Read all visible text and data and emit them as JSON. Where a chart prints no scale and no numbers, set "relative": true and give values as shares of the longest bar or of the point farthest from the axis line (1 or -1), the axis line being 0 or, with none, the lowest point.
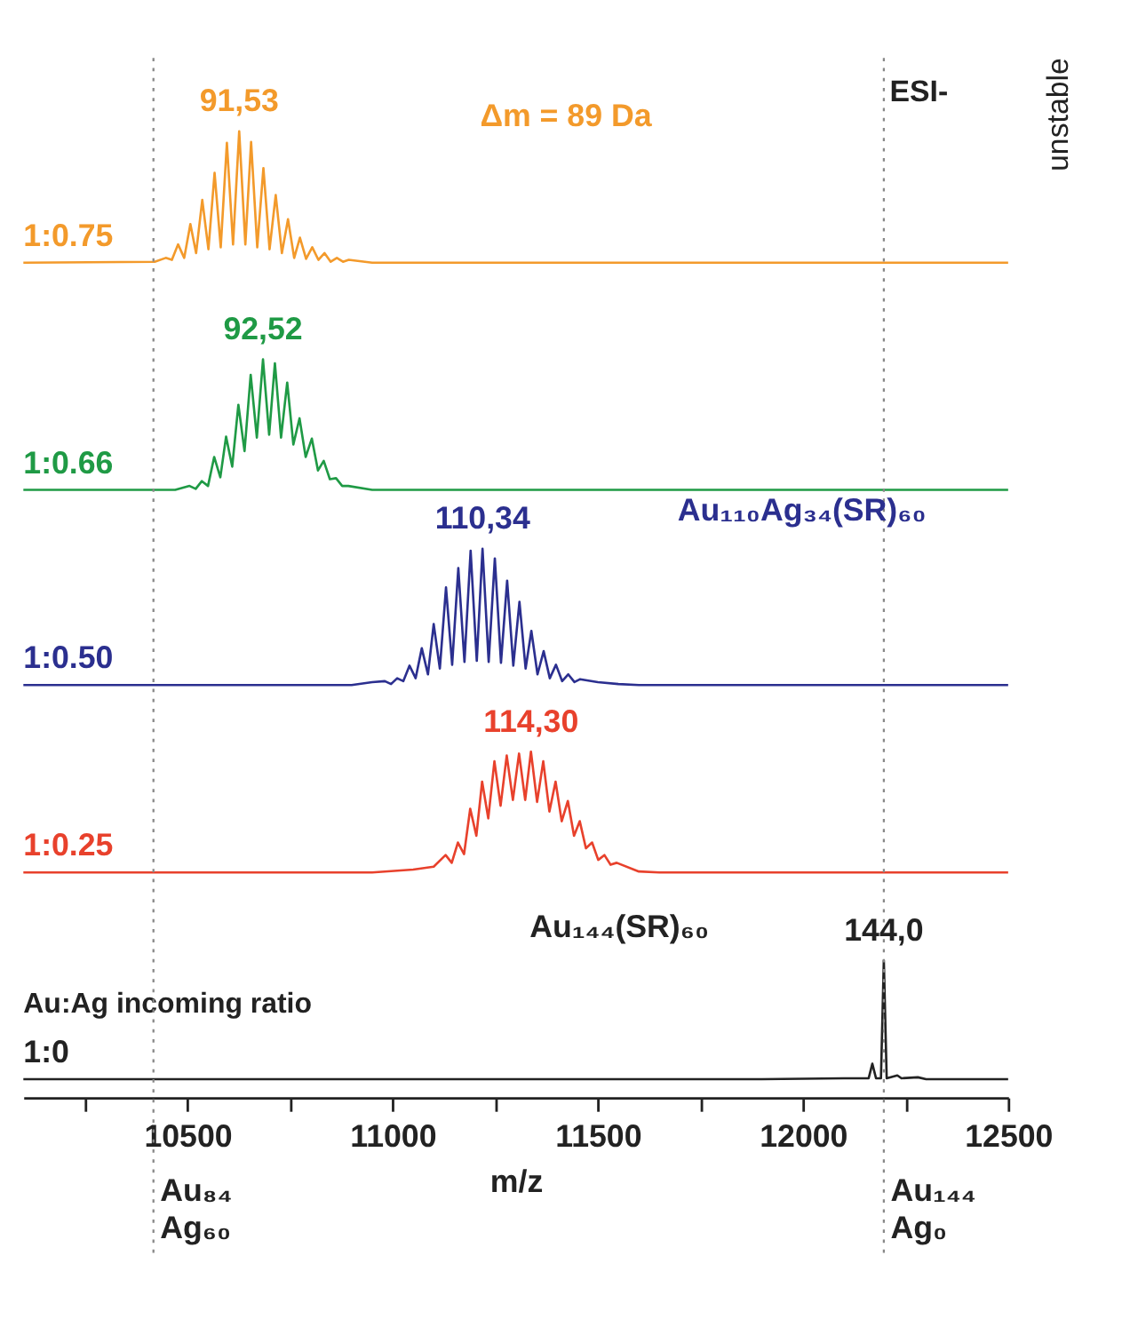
{
  "chart_data": {
    "type": "line",
    "relative": true,
    "xlim": [
      10100,
      12500
    ],
    "tick_labels": "x",
    "xlabel": "m/z",
    "legend_title": "Au:Ag incoming ratio",
    "xticks": [
      {
        "value": 10250,
        "label": null
      },
      10500,
      {
        "value": 10750,
        "label": null
      },
      11000,
      {
        "value": 11250,
        "label": null
      },
      11500,
      {
        "value": 11750,
        "label": null
      },
      12000,
      {
        "value": 12250,
        "label": null
      },
      12500
    ],
    "series": [
      {
        "name": "1:0.75",
        "color": "#f39a2b",
        "x": [
          10100,
          10420,
          10447,
          10462,
          10477,
          10492,
          10507,
          10521,
          10536,
          10551,
          10566,
          10581,
          10596,
          10611,
          10626,
          10641,
          10655,
          10670,
          10685,
          10700,
          10715,
          10730,
          10745,
          10760,
          10774,
          10789,
          10804,
          10819,
          10834,
          10849,
          10864,
          10879,
          10893,
          10950,
          12500
        ],
        "values": [
          0.864,
          0.865,
          0.869,
          0.867,
          0.883,
          0.869,
          0.904,
          0.874,
          0.929,
          0.878,
          0.957,
          0.88,
          0.988,
          0.883,
          1.0,
          0.883,
          0.989,
          0.88,
          0.962,
          0.878,
          0.934,
          0.874,
          0.909,
          0.869,
          0.89,
          0.868,
          0.88,
          0.867,
          0.874,
          0.865,
          0.869,
          0.865,
          0.867,
          0.864,
          0.864
        ]
      },
      {
        "name": "1:0.66",
        "color": "#1f9a45",
        "x": [
          10100,
          10470,
          10505,
          10520,
          10535,
          10550,
          10565,
          10580,
          10594,
          10609,
          10624,
          10639,
          10654,
          10669,
          10684,
          10699,
          10713,
          10728,
          10743,
          10758,
          10773,
          10788,
          10803,
          10818,
          10832,
          10847,
          10862,
          10877,
          10892,
          10950,
          12500
        ],
        "values": [
          0.629,
          0.629,
          0.633,
          0.63,
          0.638,
          0.633,
          0.663,
          0.642,
          0.684,
          0.653,
          0.717,
          0.669,
          0.748,
          0.683,
          0.764,
          0.686,
          0.76,
          0.683,
          0.74,
          0.676,
          0.703,
          0.663,
          0.682,
          0.649,
          0.659,
          0.64,
          0.641,
          0.633,
          0.633,
          0.629,
          0.629
        ]
      },
      {
        "name": "1:0.50",
        "color": "#2b2f8f",
        "x": [
          10100,
          10900,
          10950,
          10981,
          10996,
          11011,
          11026,
          11041,
          11056,
          11071,
          11086,
          11100,
          11115,
          11130,
          11145,
          11160,
          11175,
          11190,
          11205,
          11219,
          11234,
          11249,
          11264,
          11279,
          11294,
          11309,
          11324,
          11338,
          11353,
          11368,
          11383,
          11398,
          11413,
          11428,
          11443,
          11457,
          11500,
          11550,
          11600,
          12500
        ],
        "values": [
          0.427,
          0.427,
          0.43,
          0.431,
          0.428,
          0.434,
          0.431,
          0.447,
          0.434,
          0.465,
          0.438,
          0.49,
          0.444,
          0.528,
          0.448,
          0.548,
          0.451,
          0.566,
          0.452,
          0.568,
          0.451,
          0.558,
          0.45,
          0.535,
          0.447,
          0.513,
          0.444,
          0.483,
          0.438,
          0.462,
          0.434,
          0.448,
          0.431,
          0.438,
          0.43,
          0.433,
          0.43,
          0.428,
          0.427,
          0.427
        ]
      },
      {
        "name": "1:0.25",
        "color": "#e8412c",
        "x": [
          10100,
          10950,
          11050,
          11100,
          11129,
          11144,
          11159,
          11174,
          11189,
          11204,
          11218,
          11233,
          11248,
          11263,
          11278,
          11293,
          11308,
          11323,
          11337,
          11352,
          11367,
          11382,
          11397,
          11412,
          11427,
          11442,
          11456,
          11471,
          11486,
          11501,
          11516,
          11531,
          11546,
          11600,
          11650,
          12500
        ],
        "values": [
          0.233,
          0.233,
          0.236,
          0.239,
          0.251,
          0.243,
          0.264,
          0.252,
          0.299,
          0.271,
          0.327,
          0.289,
          0.348,
          0.302,
          0.354,
          0.308,
          0.356,
          0.308,
          0.358,
          0.306,
          0.348,
          0.296,
          0.327,
          0.286,
          0.307,
          0.271,
          0.286,
          0.258,
          0.264,
          0.246,
          0.251,
          0.241,
          0.243,
          0.234,
          0.233,
          0.233
        ]
      },
      {
        "name": "1:0",
        "color": "#222222",
        "x": [
          10100,
          11900,
          12100,
          12160,
          12169,
          12178,
          12190,
          12197,
          12204,
          12230,
          12240,
          12280,
          12300,
          12500
        ],
        "values": [
          0.019,
          0.019,
          0.02,
          0.02,
          0.035,
          0.02,
          0.02,
          0.142,
          0.02,
          0.023,
          0.02,
          0.021,
          0.019,
          0.019
        ]
      }
    ],
    "ref_lines": [
      {
        "axis": "x",
        "value": 10417,
        "label": "Au₈₄\nAg₆₀",
        "line_style": "dotted",
        "color": "#888888"
      },
      {
        "axis": "x",
        "value": 12197,
        "label": "Au₁₄₄\nAg₀",
        "line_style": "dotted",
        "color": "#888888"
      }
    ],
    "annotations": [
      {
        "text": "91,53",
        "x": 10626,
        "y": 1.0
      },
      {
        "text": "92,52",
        "x": 10684,
        "y": 0.764
      },
      {
        "text": "110,34",
        "x": 11219,
        "y": 0.568
      },
      {
        "text": "114,30",
        "x": 11337,
        "y": 0.358
      },
      {
        "text": "144,0",
        "x": 12197,
        "y": 0.142
      },
      "Δm = 89 Da",
      "ESI-",
      "unstable",
      "Au₁₁₀Ag₃₄(SR)₆₀",
      "Au₁₄₄(SR)₆₀"
    ]
  }
}
